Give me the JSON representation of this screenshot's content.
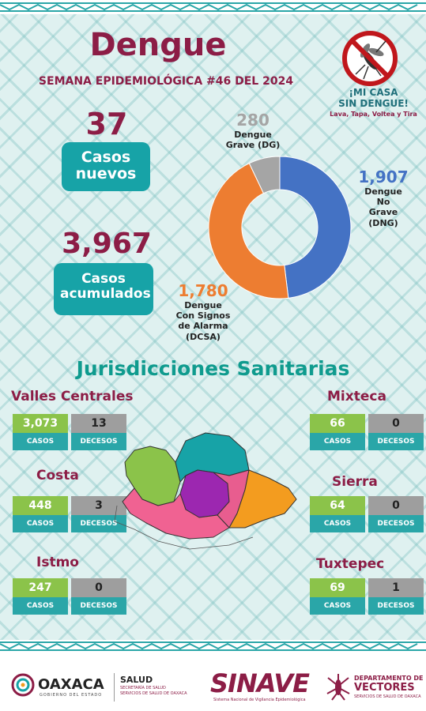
{
  "header": {
    "title": "Dengue",
    "subtitle": "SEMANA EPIDEMIOLÓGICA #46 DEL 2024"
  },
  "slogan": {
    "line1": "¡MI CASA",
    "line2": "SIN DENGUE!",
    "line3": "Lava, Tapa, Voltea y Tira"
  },
  "summary": {
    "new_cases": "37",
    "new_cases_label": "Casos nuevos",
    "total_cases": "3,967",
    "total_cases_label": "Casos acumulados"
  },
  "chart_data": {
    "type": "pie",
    "categories": [
      "Dengue No Grave (DNG)",
      "Dengue Con Signos de Alarma (DCSA)",
      "Dengue Grave (DG)"
    ],
    "values": [
      1907,
      1780,
      280
    ],
    "colors": [
      "#4472c4",
      "#ed7d31",
      "#a5a5a5"
    ],
    "labels": [
      {
        "num": "1,907",
        "text": [
          "Dengue",
          "No",
          "Grave",
          "(DNG)"
        ]
      },
      {
        "num": "1,780",
        "text": [
          "Dengue",
          "Con Signos",
          "de Alarma",
          "(DCSA)"
        ]
      },
      {
        "num": "280",
        "text": [
          "Dengue",
          "Grave (DG)"
        ]
      }
    ]
  },
  "jurisdictions_title": "Jurisdicciones Sanitarias",
  "stat_labels": {
    "cases": "CASOS",
    "deaths": "DECESOS"
  },
  "jurisdictions": [
    {
      "name": "Valles Centrales",
      "cases": "3,073",
      "deaths": "13"
    },
    {
      "name": "Costa",
      "cases": "448",
      "deaths": "3"
    },
    {
      "name": "Istmo",
      "cases": "247",
      "deaths": "0"
    },
    {
      "name": "Mixteca",
      "cases": "66",
      "deaths": "0"
    },
    {
      "name": "Sierra",
      "cases": "64",
      "deaths": "0"
    },
    {
      "name": "Tuxtepec",
      "cases": "69",
      "deaths": "1"
    }
  ],
  "footer": {
    "oaxaca": "OAXACA",
    "oaxaca_sub": "GOBIERNO DEL ESTADO",
    "salud": "SALUD",
    "salud_sub1": "SECRETARÍA DE SALUD",
    "salud_sub2": "SERVICIOS DE SALUD DE OAXACA",
    "sinave": "SINAVE",
    "sinave_sub": "Sistema Nacional de Vigilancia Epidemiológica",
    "vect1": "DEPARTAMENTO DE",
    "vect2": "VECTORES",
    "vect3": "SERVICIOS DE SALUD DE OAXACA"
  },
  "map_colors": {
    "mixteca": "#8bc34a",
    "tuxtepec": "#17a3a7",
    "valles": "#9c27b0",
    "sierra": "#e85d8f",
    "istmo": "#f39c1f",
    "costa": "#f06292"
  }
}
